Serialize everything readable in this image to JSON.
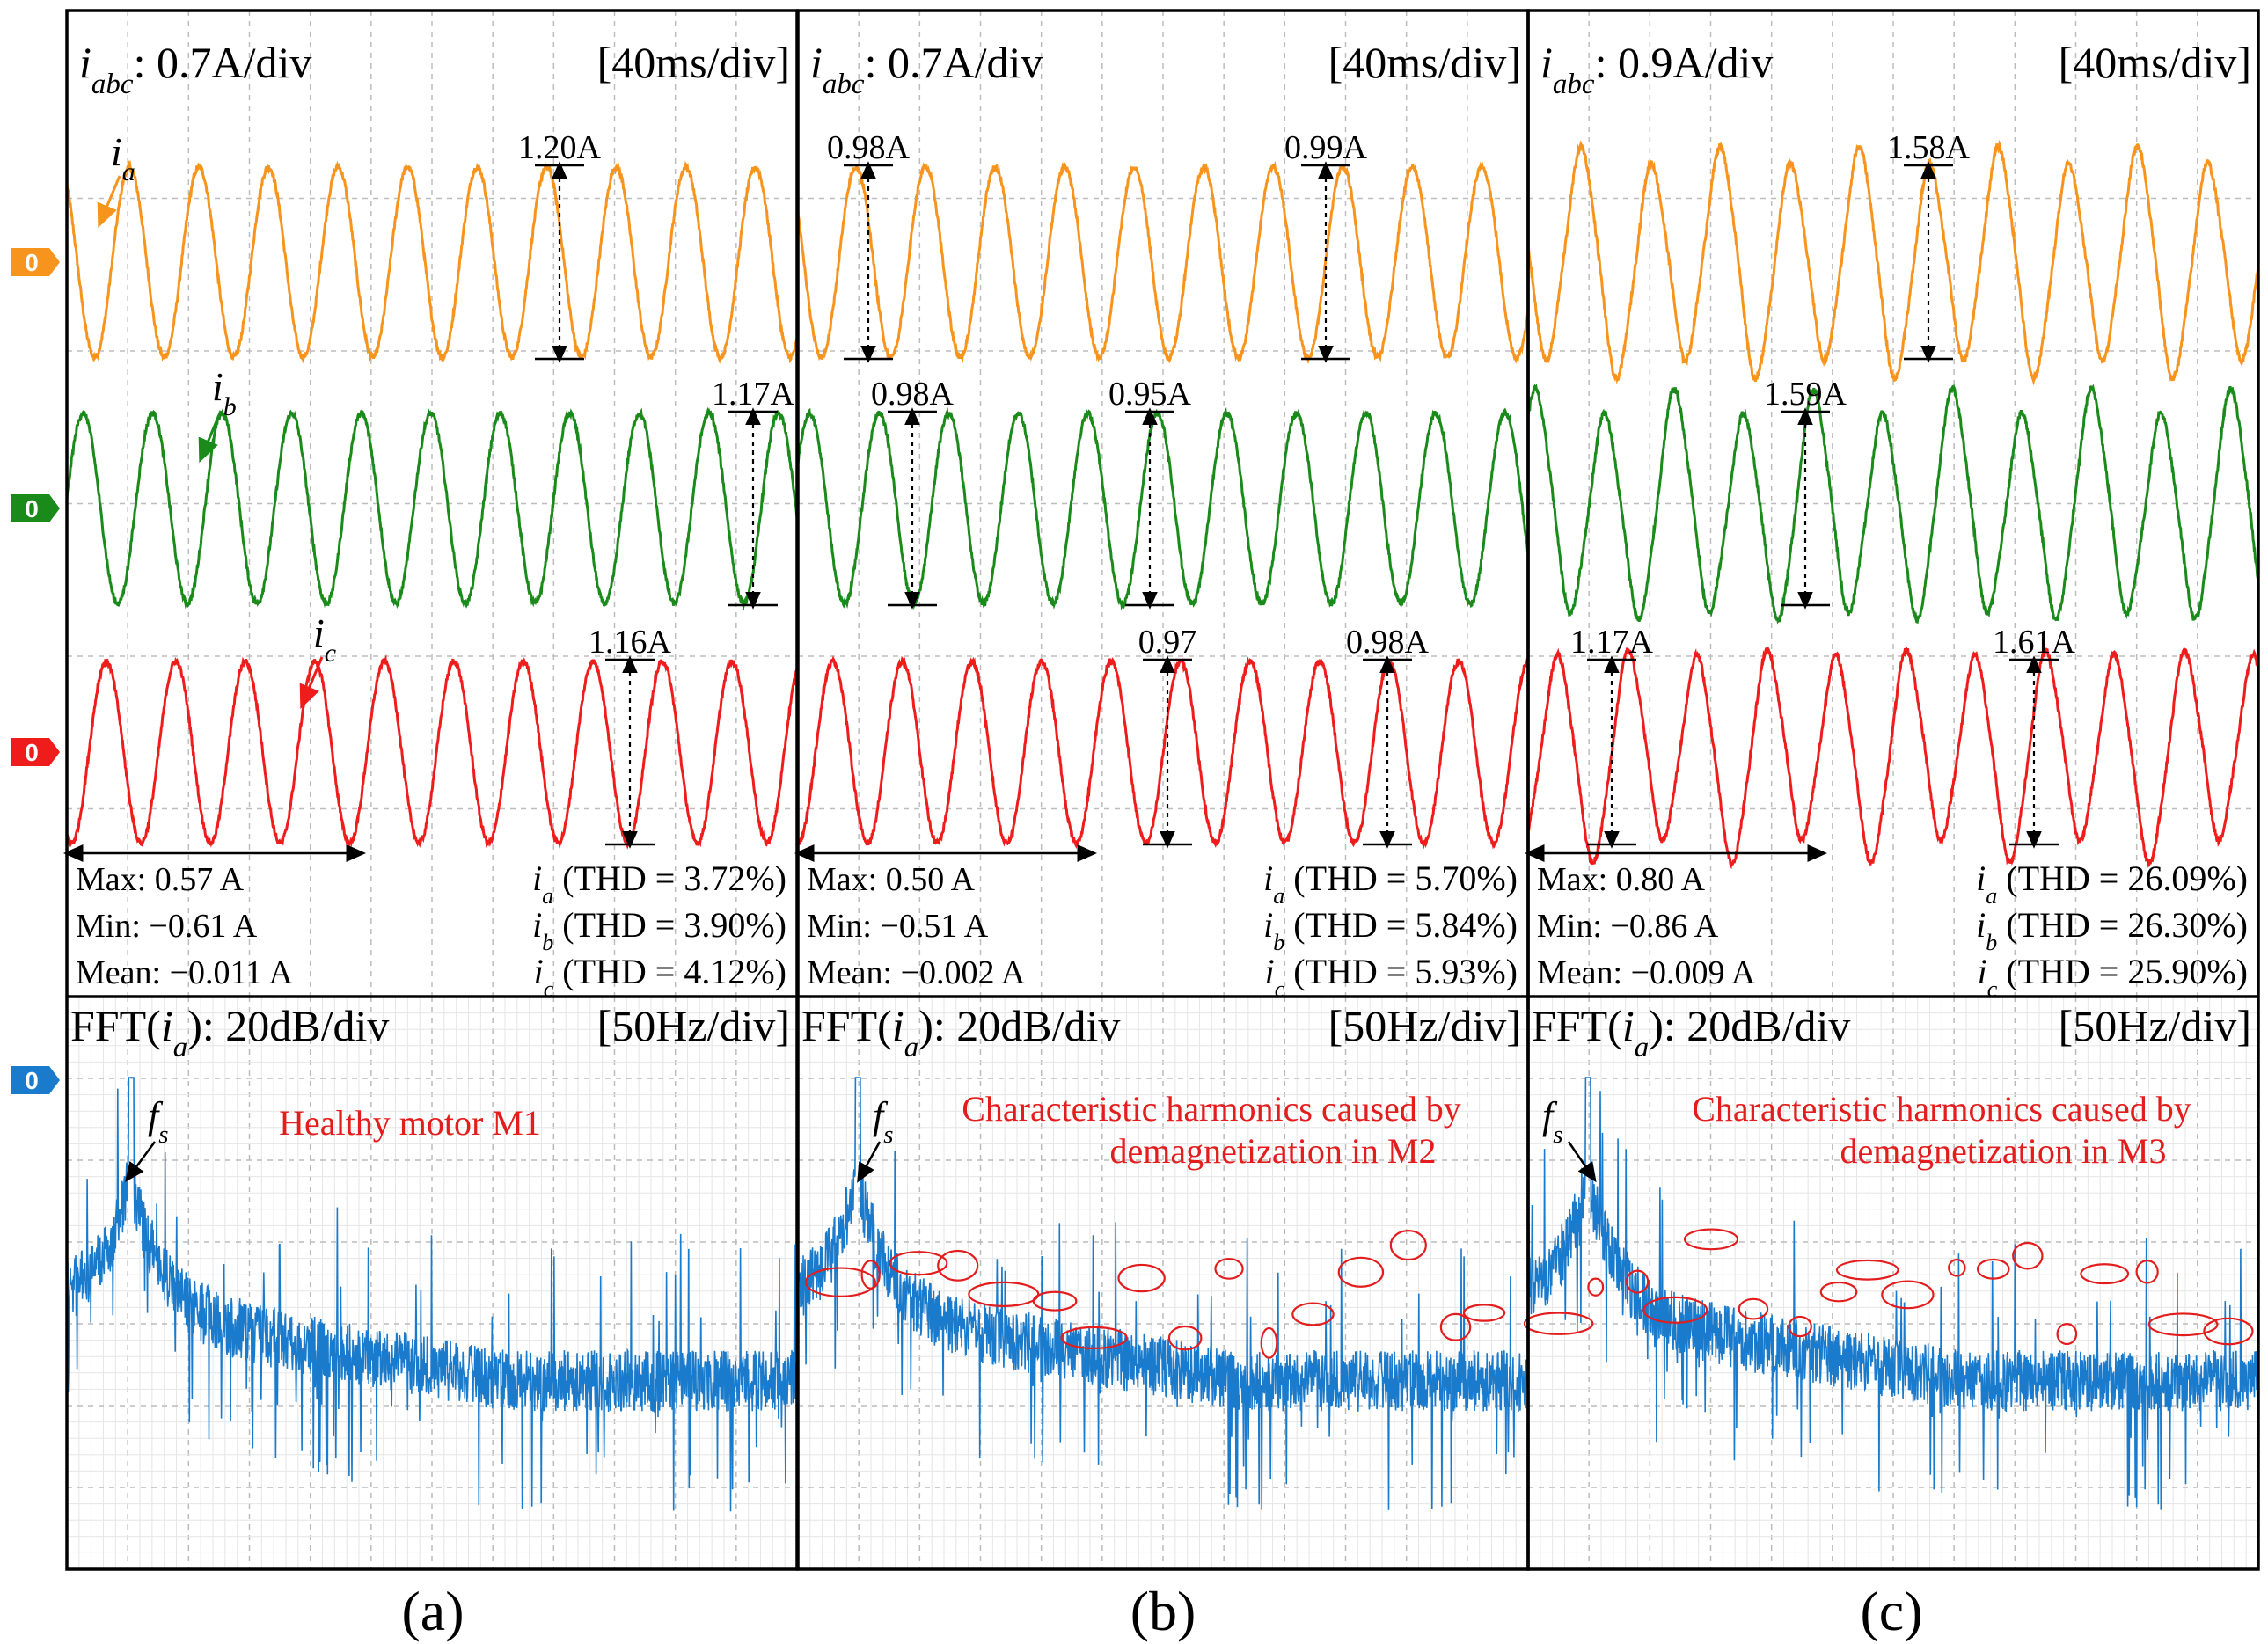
{
  "panel_labels": [
    "(a)",
    "(b)",
    "(c)"
  ],
  "chart_data": [
    {
      "type": "line",
      "panel": "(a)",
      "time_scale": {
        "prefix": "i",
        "subscript": "abc",
        "scale": ": 0.7A/div",
        "timebase": "[40ms/div]"
      },
      "fft_scale": {
        "prefix": "FFT(",
        "var": "i",
        "sub": "a",
        "suffix": "): 20dB/div",
        "freqbase": "[50Hz/div]"
      },
      "time_divisions": 12,
      "current_amplitude_A": 0.6,
      "periods_shown": 10.5,
      "thd_percent": [
        3.72,
        3.9,
        4.12
      ],
      "series": [
        {
          "name": "ia",
          "symbol": "i",
          "sub": "a",
          "color": "#f7941d",
          "peak_label": "1.20A"
        },
        {
          "name": "ib",
          "symbol": "i",
          "sub": "b",
          "color": "#1a8a1a",
          "peak_label": "1.17A"
        },
        {
          "name": "ic",
          "symbol": "i",
          "sub": "c",
          "color": "#ef1c1c",
          "peak_label": "1.16A"
        }
      ],
      "stats": {
        "max": "Max: 0.57 A",
        "min": "Min: −0.61 A",
        "mean": "Mean: −0.011 A"
      },
      "thd": [
        "(THD = 3.72%)",
        "(THD = 3.90%)",
        "(THD = 4.12%)"
      ],
      "fft": {
        "fundamental_label": "f",
        "fundamental_sub": "s",
        "annotation_lines": [
          "Healthy motor M1"
        ],
        "circles": 0
      },
      "color_fft": "#1a7acb"
    },
    {
      "type": "line",
      "panel": "(b)",
      "time_scale": {
        "prefix": "i",
        "subscript": "abc",
        "scale": ": 0.7A/div",
        "timebase": "[40ms/div]"
      },
      "fft_scale": {
        "prefix": "FFT(",
        "var": "i",
        "sub": "a",
        "suffix": "): 20dB/div",
        "freqbase": "[50Hz/div]"
      },
      "time_divisions": 12,
      "current_amplitude_A": 0.5,
      "periods_shown": 10.5,
      "thd_percent": [
        5.7,
        5.84,
        5.93
      ],
      "series": [
        {
          "name": "ia",
          "symbol": "i",
          "sub": "a",
          "color": "#f7941d",
          "peak_labels": [
            "0.98A",
            "0.99A"
          ]
        },
        {
          "name": "ib",
          "symbol": "i",
          "sub": "b",
          "color": "#1a8a1a",
          "peak_labels": [
            "0.98A",
            "0.95A"
          ]
        },
        {
          "name": "ic",
          "symbol": "i",
          "sub": "c",
          "color": "#ef1c1c",
          "peak_labels": [
            "0.97",
            "0.98A"
          ]
        }
      ],
      "stats": {
        "max": "Max: 0.50 A",
        "min": "Min: −0.51 A",
        "mean": "Mean: −0.002 A"
      },
      "thd": [
        "(THD = 5.70%)",
        "(THD = 5.84%)",
        "(THD = 5.93%)"
      ],
      "fft": {
        "fundamental_label": "f",
        "fundamental_sub": "s",
        "annotation_lines": [
          "Characteristic harmonics caused by",
          "demagnetization in M2"
        ],
        "circles": 16
      },
      "color_fft": "#1a7acb"
    },
    {
      "type": "line",
      "panel": "(c)",
      "time_scale": {
        "prefix": "i",
        "subscript": "abc",
        "scale": ": 0.9A/div",
        "timebase": "[40ms/div]"
      },
      "fft_scale": {
        "prefix": "FFT(",
        "var": "i",
        "sub": "a",
        "suffix": "): 20dB/div",
        "freqbase": "[50Hz/div]"
      },
      "time_divisions": 12,
      "current_amplitude_A": 0.8,
      "periods_shown": 10.5,
      "thd_percent": [
        26.09,
        26.3,
        25.9
      ],
      "series": [
        {
          "name": "ia",
          "symbol": "i",
          "sub": "a",
          "color": "#f7941d",
          "peak_label": "1.58A"
        },
        {
          "name": "ib",
          "symbol": "i",
          "sub": "b",
          "color": "#1a8a1a",
          "peak_label": "1.59A"
        },
        {
          "name": "ic",
          "symbol": "i",
          "sub": "c",
          "color": "#ef1c1c",
          "peak_labels": [
            "1.17A",
            "1.61A"
          ]
        }
      ],
      "stats": {
        "max": "Max: 0.80 A",
        "min": "Min: −0.86 A",
        "mean": "Mean: −0.009 A"
      },
      "thd": [
        "(THD = 26.09%)",
        "(THD = 26.30%)",
        "(THD = 25.90%)"
      ],
      "fft": {
        "fundamental_label": "f",
        "fundamental_sub": "s",
        "annotation_lines": [
          "Characteristic harmonics caused by",
          "demagnetization in M3"
        ],
        "circles": 18
      },
      "color_fft": "#1a7acb"
    }
  ],
  "markers": {
    "zero": "0",
    "colors": [
      "#f7941d",
      "#1a8a1a",
      "#ef1c1c",
      "#1a7acb"
    ]
  }
}
